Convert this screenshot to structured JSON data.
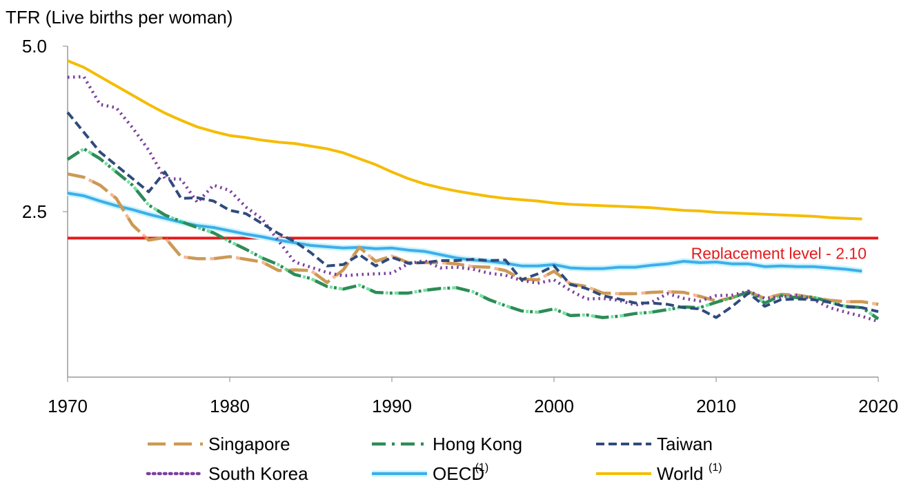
{
  "chart_data": {
    "type": "line",
    "title": "",
    "ylabel": "TFR (Live births per woman)",
    "xlabel": "",
    "xlim": [
      1970,
      2020
    ],
    "ylim": [
      0,
      5
    ],
    "x_ticks": [
      "1970",
      "1980",
      "1990",
      "2000",
      "2010",
      "2020"
    ],
    "y_ticks": [
      "2.5",
      "5.0"
    ],
    "grid": false,
    "legend_position": "bottom",
    "reference_line": {
      "value": 2.1,
      "label": "Replacement level - 2.10",
      "color": "#e31a1c"
    },
    "series": [
      {
        "name": "Singapore",
        "superscript": "",
        "color": "#cc9955",
        "color2": "#f07c3c",
        "style": "long-dash",
        "x": [
          1970,
          1971,
          1972,
          1973,
          1974,
          1975,
          1976,
          1977,
          1978,
          1979,
          1980,
          1981,
          1982,
          1983,
          1984,
          1985,
          1986,
          1987,
          1988,
          1989,
          1990,
          1991,
          1992,
          1993,
          1994,
          1995,
          1996,
          1997,
          1998,
          1999,
          2000,
          2001,
          2002,
          2003,
          2004,
          2005,
          2006,
          2007,
          2008,
          2009,
          2010,
          2011,
          2012,
          2013,
          2014,
          2015,
          2016,
          2017,
          2018,
          2019,
          2020
        ],
        "values": [
          3.07,
          3.02,
          2.9,
          2.7,
          2.3,
          2.07,
          2.11,
          1.82,
          1.79,
          1.79,
          1.82,
          1.78,
          1.74,
          1.61,
          1.62,
          1.61,
          1.43,
          1.62,
          1.96,
          1.75,
          1.83,
          1.73,
          1.73,
          1.73,
          1.71,
          1.67,
          1.66,
          1.61,
          1.48,
          1.47,
          1.6,
          1.41,
          1.37,
          1.27,
          1.26,
          1.26,
          1.28,
          1.29,
          1.28,
          1.22,
          1.15,
          1.2,
          1.29,
          1.19,
          1.25,
          1.24,
          1.2,
          1.16,
          1.14,
          1.14,
          1.1
        ]
      },
      {
        "name": "Hong Kong",
        "superscript": "",
        "color": "#2e8b57",
        "color2": "#00c853",
        "style": "dash-dot",
        "x": [
          1970,
          1971,
          1972,
          1973,
          1974,
          1975,
          1976,
          1977,
          1978,
          1979,
          1980,
          1981,
          1982,
          1983,
          1984,
          1985,
          1986,
          1987,
          1988,
          1989,
          1990,
          1991,
          1992,
          1993,
          1994,
          1995,
          1996,
          1997,
          1998,
          1999,
          2000,
          2001,
          2002,
          2003,
          2004,
          2005,
          2006,
          2007,
          2008,
          2009,
          2010,
          2011,
          2012,
          2013,
          2014,
          2015,
          2016,
          2017,
          2018,
          2019,
          2020
        ],
        "values": [
          3.29,
          3.45,
          3.3,
          3.1,
          2.9,
          2.6,
          2.45,
          2.35,
          2.26,
          2.18,
          2.05,
          1.93,
          1.8,
          1.7,
          1.55,
          1.49,
          1.37,
          1.33,
          1.39,
          1.28,
          1.27,
          1.27,
          1.31,
          1.34,
          1.35,
          1.29,
          1.17,
          1.08,
          1.0,
          0.98,
          1.03,
          0.93,
          0.94,
          0.9,
          0.92,
          0.96,
          0.98,
          1.02,
          1.06,
          1.05,
          1.13,
          1.2,
          1.29,
          1.12,
          1.23,
          1.2,
          1.21,
          1.13,
          1.07,
          1.05,
          0.88
        ]
      },
      {
        "name": "Taiwan",
        "superscript": "",
        "color": "#2f4b7c",
        "color2": "",
        "style": "short-dash",
        "x": [
          1970,
          1971,
          1972,
          1973,
          1974,
          1975,
          1976,
          1977,
          1978,
          1979,
          1980,
          1981,
          1982,
          1983,
          1984,
          1985,
          1986,
          1987,
          1988,
          1989,
          1990,
          1991,
          1992,
          1993,
          1994,
          1995,
          1996,
          1997,
          1998,
          1999,
          2000,
          2001,
          2002,
          2003,
          2004,
          2005,
          2006,
          2007,
          2008,
          2009,
          2010,
          2011,
          2012,
          2013,
          2014,
          2015,
          2016,
          2017,
          2018,
          2019,
          2020
        ],
        "values": [
          4.0,
          3.7,
          3.4,
          3.2,
          3.0,
          2.8,
          3.1,
          2.7,
          2.71,
          2.66,
          2.52,
          2.47,
          2.32,
          2.17,
          2.05,
          1.88,
          1.68,
          1.7,
          1.85,
          1.68,
          1.81,
          1.72,
          1.73,
          1.76,
          1.76,
          1.78,
          1.76,
          1.77,
          1.47,
          1.56,
          1.68,
          1.4,
          1.34,
          1.23,
          1.18,
          1.12,
          1.12,
          1.1,
          1.05,
          1.03,
          0.9,
          1.07,
          1.27,
          1.07,
          1.17,
          1.18,
          1.17,
          1.13,
          1.06,
          1.05,
          0.99
        ]
      },
      {
        "name": "South Korea",
        "superscript": "",
        "color": "#7b3fa0",
        "color2": "",
        "style": "dotted",
        "x": [
          1970,
          1971,
          1972,
          1973,
          1974,
          1975,
          1976,
          1977,
          1978,
          1979,
          1980,
          1981,
          1982,
          1983,
          1984,
          1985,
          1986,
          1987,
          1988,
          1989,
          1990,
          1991,
          1992,
          1993,
          1994,
          1995,
          1996,
          1997,
          1998,
          1999,
          2000,
          2001,
          2002,
          2003,
          2004,
          2005,
          2006,
          2007,
          2008,
          2009,
          2010,
          2011,
          2012,
          2013,
          2014,
          2015,
          2016,
          2017,
          2018,
          2019,
          2020
        ],
        "values": [
          4.53,
          4.54,
          4.12,
          4.07,
          3.77,
          3.43,
          3.0,
          2.99,
          2.64,
          2.9,
          2.82,
          2.57,
          2.39,
          2.06,
          1.74,
          1.66,
          1.58,
          1.53,
          1.55,
          1.56,
          1.57,
          1.71,
          1.76,
          1.65,
          1.66,
          1.63,
          1.57,
          1.54,
          1.46,
          1.42,
          1.47,
          1.31,
          1.18,
          1.19,
          1.16,
          1.09,
          1.13,
          1.26,
          1.19,
          1.15,
          1.23,
          1.24,
          1.3,
          1.19,
          1.21,
          1.24,
          1.17,
          1.05,
          0.98,
          0.92,
          0.84
        ]
      },
      {
        "name": "OECD",
        "superscript": "(1)",
        "color": "#3daee9",
        "color2": "",
        "style": "solid",
        "x": [
          1970,
          1971,
          1972,
          1973,
          1974,
          1975,
          1976,
          1977,
          1978,
          1979,
          1980,
          1981,
          1982,
          1983,
          1984,
          1985,
          1986,
          1987,
          1988,
          1989,
          1990,
          1991,
          1992,
          1993,
          1994,
          1995,
          1996,
          1997,
          1998,
          1999,
          2000,
          2001,
          2002,
          2003,
          2004,
          2005,
          2006,
          2007,
          2008,
          2009,
          2010,
          2011,
          2012,
          2013,
          2014,
          2015,
          2016,
          2017,
          2018,
          2019
        ],
        "values": [
          2.78,
          2.74,
          2.66,
          2.59,
          2.53,
          2.46,
          2.4,
          2.34,
          2.29,
          2.26,
          2.21,
          2.16,
          2.12,
          2.07,
          2.03,
          1.99,
          1.97,
          1.95,
          1.96,
          1.94,
          1.95,
          1.92,
          1.9,
          1.85,
          1.8,
          1.77,
          1.75,
          1.72,
          1.68,
          1.68,
          1.7,
          1.65,
          1.64,
          1.64,
          1.66,
          1.66,
          1.69,
          1.71,
          1.75,
          1.73,
          1.74,
          1.71,
          1.71,
          1.67,
          1.68,
          1.67,
          1.67,
          1.65,
          1.63,
          1.6
        ]
      },
      {
        "name": "World",
        "superscript": "(1)",
        "color": "#f5bc00",
        "color2": "",
        "style": "solid",
        "x": [
          1970,
          1971,
          1972,
          1973,
          1974,
          1975,
          1976,
          1977,
          1978,
          1979,
          1980,
          1981,
          1982,
          1983,
          1984,
          1985,
          1986,
          1987,
          1988,
          1989,
          1990,
          1991,
          1992,
          1993,
          1994,
          1995,
          1996,
          1997,
          1998,
          1999,
          2000,
          2001,
          2002,
          2003,
          2004,
          2005,
          2006,
          2007,
          2008,
          2009,
          2010,
          2011,
          2012,
          2013,
          2014,
          2015,
          2016,
          2017,
          2018,
          2019
        ],
        "values": [
          4.78,
          4.68,
          4.54,
          4.4,
          4.26,
          4.12,
          3.99,
          3.88,
          3.78,
          3.71,
          3.65,
          3.62,
          3.58,
          3.55,
          3.53,
          3.49,
          3.45,
          3.39,
          3.3,
          3.21,
          3.1,
          3.0,
          2.92,
          2.86,
          2.81,
          2.77,
          2.73,
          2.7,
          2.68,
          2.66,
          2.63,
          2.61,
          2.6,
          2.59,
          2.58,
          2.57,
          2.56,
          2.54,
          2.52,
          2.51,
          2.49,
          2.48,
          2.47,
          2.46,
          2.45,
          2.44,
          2.43,
          2.41,
          2.4,
          2.39
        ]
      }
    ]
  }
}
